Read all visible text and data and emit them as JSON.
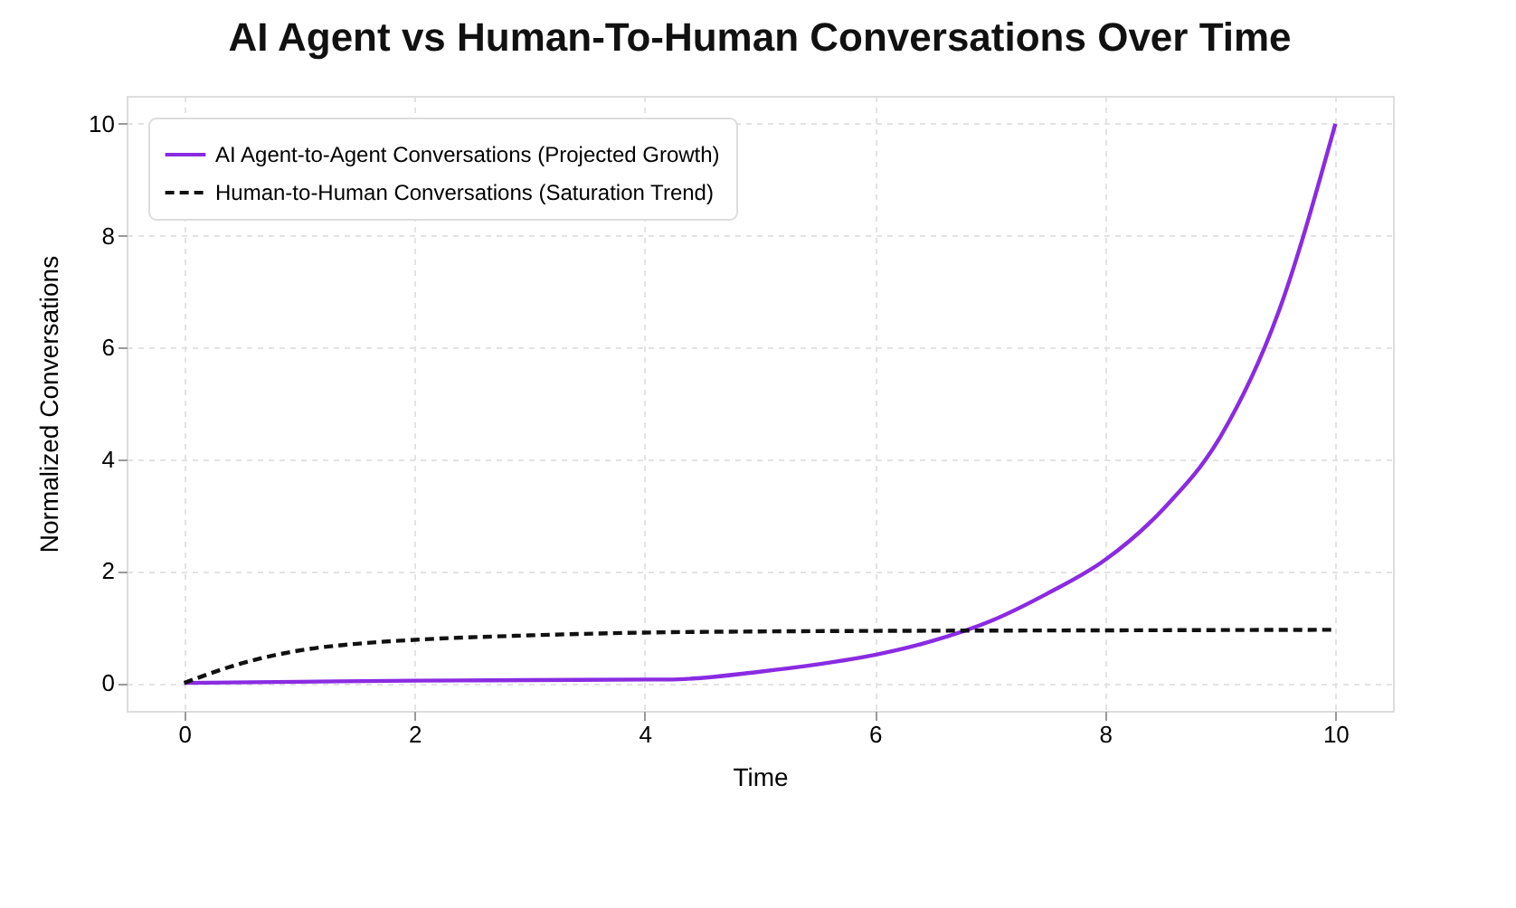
{
  "chart_data": {
    "type": "line",
    "title": "AI Agent vs Human-To-Human Conversations Over Time",
    "xlabel": "Time",
    "ylabel": "Normalized Conversations",
    "xlim": [
      -0.5,
      10.5
    ],
    "ylim": [
      -0.5,
      10.5
    ],
    "xticks": [
      0,
      2,
      4,
      6,
      8,
      10
    ],
    "yticks": [
      0,
      2,
      4,
      6,
      8,
      10
    ],
    "grid": true,
    "legend": "top left",
    "series": [
      {
        "name": "AI Agent-to-Agent Conversations (Projected Growth)",
        "color": "#8a2be2",
        "line_style": "solid",
        "x": [
          0,
          1,
          2,
          3,
          4,
          4.2,
          5,
          5.5,
          6,
          6.5,
          7,
          7.5,
          8,
          8.5,
          9,
          9.5,
          10
        ],
        "values": [
          0,
          0.02,
          0.04,
          0.05,
          0.06,
          0.06,
          0.2,
          0.33,
          0.5,
          0.75,
          1.1,
          1.6,
          2.2,
          3.1,
          4.4,
          6.6,
          10
        ]
      },
      {
        "name": "Human-to-Human Conversations (Saturation Trend)",
        "color": "#111111",
        "line_style": "dashed",
        "x": [
          0,
          0.5,
          1,
          1.5,
          2,
          3,
          4,
          5,
          6,
          8,
          10
        ],
        "values": [
          0,
          0.35,
          0.58,
          0.7,
          0.77,
          0.85,
          0.9,
          0.92,
          0.93,
          0.94,
          0.95
        ]
      }
    ]
  }
}
